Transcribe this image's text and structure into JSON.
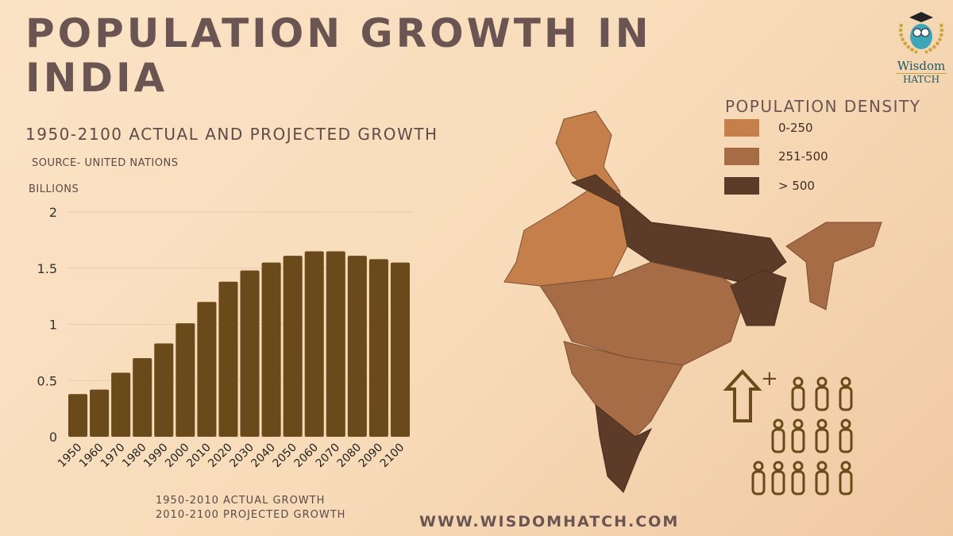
{
  "title": "POPULATION GROWTH IN INDIA",
  "subtitle": "1950-2100 ACTUAL AND PROJECTED GROWTH",
  "source": "SOURCE- UNITED NATIONS",
  "notes": [
    "1950-2010 ACTUAL GROWTH",
    "2010-2100 PROJECTED GROWTH"
  ],
  "url": "WWW.WISDOMHATCH.COM",
  "logo": {
    "line1": "Wisdom",
    "line2": "HATCH"
  },
  "legend": {
    "title": "POPULATION DENSITY",
    "items": [
      {
        "label": "0-250",
        "color": "#c47f4b"
      },
      {
        "label": "251-500",
        "color": "#a66c46"
      },
      {
        "label": "> 500",
        "color": "#5c3b28"
      }
    ]
  },
  "chart_data": {
    "type": "bar",
    "ylabel": "BILLIONS",
    "categories": [
      "1950",
      "1960",
      "1970",
      "1980",
      "1990",
      "2000",
      "2010",
      "2020",
      "2030",
      "2040",
      "2050",
      "2060",
      "2070",
      "2080",
      "2090",
      "2100"
    ],
    "values": [
      0.38,
      0.42,
      0.57,
      0.7,
      0.83,
      1.01,
      1.2,
      1.38,
      1.48,
      1.55,
      1.61,
      1.65,
      1.65,
      1.61,
      1.58,
      1.55
    ],
    "yticks": [
      "0",
      "0.5",
      "1",
      "1.5",
      "2"
    ],
    "ylim": [
      0,
      2
    ],
    "grid": true,
    "bar_color": "#6a4a1a"
  }
}
